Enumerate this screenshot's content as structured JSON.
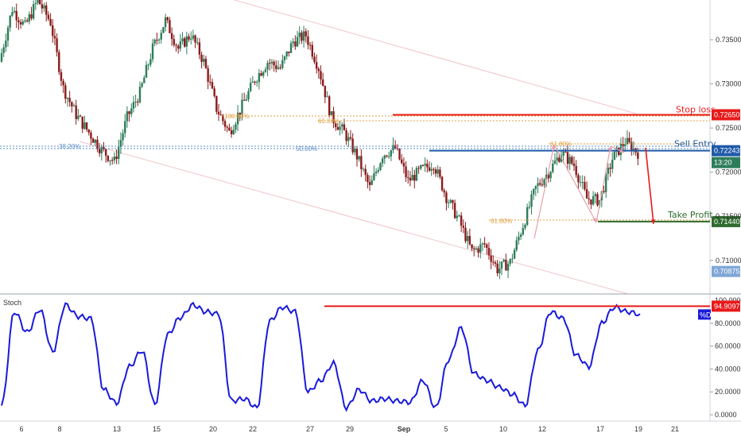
{
  "chart_data": [
    {
      "type": "candlestick",
      "price_axis": {
        "ticks": [
          "0.73500",
          "0.73000",
          "0.72500",
          "0.72000",
          "0.71500",
          "0.71000"
        ],
        "tick_values": [
          0.735,
          0.73,
          0.725,
          0.72,
          0.715,
          0.71
        ],
        "ylim": [
          0.7062,
          0.7395
        ]
      },
      "x_axis": {
        "ticks": [
          "6",
          "8",
          "13",
          "15",
          "20",
          "22",
          "27",
          "29",
          "Sep",
          "5",
          "10",
          "12",
          "17",
          "19",
          "21"
        ]
      },
      "price_path": [
        0.7325,
        0.7385,
        0.7365,
        0.7395,
        0.737,
        0.7295,
        0.7265,
        0.7245,
        0.7225,
        0.7212,
        0.7262,
        0.729,
        0.734,
        0.7372,
        0.734,
        0.7356,
        0.7325,
        0.7272,
        0.7245,
        0.7275,
        0.7305,
        0.7325,
        0.7318,
        0.7348,
        0.7355,
        0.7318,
        0.7262,
        0.7245,
        0.7218,
        0.7182,
        0.722,
        0.7227,
        0.719,
        0.7202,
        0.721,
        0.7172,
        0.7145,
        0.711,
        0.7118,
        0.709,
        0.7098,
        0.714,
        0.7182,
        0.72,
        0.7222,
        0.7208,
        0.717,
        0.7168,
        0.7215,
        0.7235,
        0.7222
      ],
      "levels": {
        "stop_loss": {
          "label": "Stop loss",
          "value": "0.72650",
          "color": "#e81a1a"
        },
        "sell_entry": {
          "label": "Sell Entry",
          "value": "0.72243",
          "color": "#1e5aa8"
        },
        "take_profit": {
          "label": "Take Profit",
          "value": "0.71440",
          "color": "#2e6b2e"
        },
        "recent_low_tag": {
          "value": "0.70875",
          "color": "#7ea7d6"
        },
        "countdown_tag": {
          "value": "13:20",
          "color": "#2e7d5a"
        }
      },
      "fib_labels": [
        {
          "text": "100.00%",
          "color": "#e0a040"
        },
        {
          "text": "61.80%",
          "color": "#e0a040"
        },
        {
          "text": "50.00%",
          "color": "#5c8fc9"
        },
        {
          "text": "38.20%",
          "color": "#5c8fc9"
        },
        {
          "text": "61.80%",
          "color": "#e0a040"
        },
        {
          "text": "61.80%",
          "color": "#e0a040"
        }
      ],
      "colors": {
        "up": "#2e7d5a",
        "down": "#8b1a1a"
      }
    },
    {
      "type": "line",
      "indicator": "Stoch",
      "ylim": [
        0,
        100
      ],
      "yticks": [
        "80.0000",
        "60.0000",
        "40.0000",
        "20.0000",
        "0.0000"
      ],
      "ytick_values": [
        80,
        60,
        40,
        20,
        0
      ],
      "top_tick_partial": "100.0000",
      "series": [
        {
          "name": "%D",
          "color": "#1a1adb",
          "values": [
            8,
            90,
            72,
            92,
            55,
            96,
            86,
            84,
            22,
            10,
            42,
            56,
            9,
            70,
            85,
            96,
            90,
            88,
            12,
            14,
            6,
            82,
            94,
            90,
            20,
            30,
            45,
            6,
            22,
            12,
            14,
            12,
            11,
            30,
            6,
            48,
            76,
            36,
            30,
            24,
            18,
            8,
            56,
            90,
            84,
            52,
            42,
            80,
            94,
            90,
            88
          ]
        }
      ],
      "resistance_value": "94.9097",
      "resistance_color": "#e81a1a"
    }
  ]
}
